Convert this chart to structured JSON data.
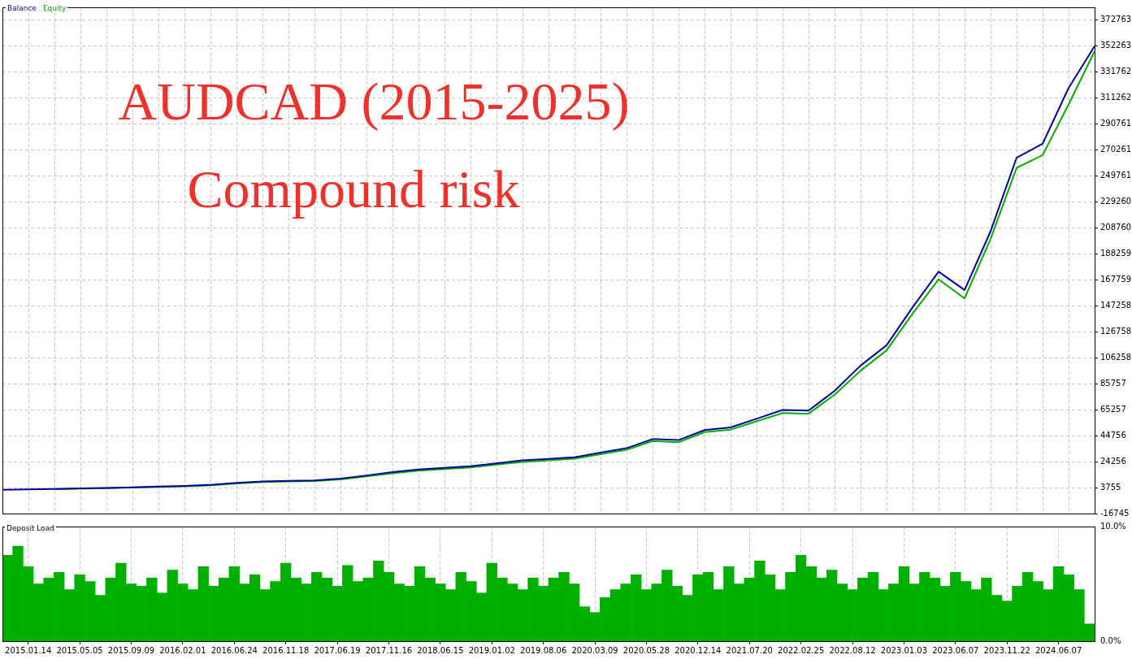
{
  "chart_data": [
    {
      "type": "line",
      "title": "AUDCAD (2015-2025)",
      "subtitle": "Compound risk",
      "legend": "top left",
      "grid": true,
      "marker": "none",
      "line_style": "solid",
      "tick_labels": "y",
      "categories": [
        null,
        null,
        null,
        null,
        null,
        null,
        null,
        null,
        null,
        null,
        null,
        null,
        null,
        null,
        null,
        null,
        null,
        null,
        null,
        null,
        null,
        null,
        null,
        null,
        null,
        null,
        null,
        null,
        null,
        null,
        null,
        null,
        null,
        null,
        null,
        null,
        null,
        null,
        null,
        null,
        null,
        null,
        null
      ],
      "ylim": [
        -16745,
        382600
      ],
      "yticks": [
        -16745,
        3755,
        24256,
        44756,
        65257,
        85757,
        106258,
        126758,
        147258,
        167759,
        188259,
        208760,
        229260,
        249761,
        270261,
        290761,
        311262,
        331762,
        352263,
        372763
      ],
      "series": [
        {
          "name": "Balance",
          "color": "#0000a0",
          "values": [
            2000,
            2300,
            2700,
            3100,
            3500,
            3900,
            4500,
            5100,
            5900,
            7500,
            8600,
            9000,
            9400,
            10800,
            13300,
            15900,
            18000,
            19300,
            20600,
            22900,
            25200,
            26400,
            27700,
            31300,
            34800,
            42000,
            41200,
            49100,
            51200,
            58000,
            65000,
            64500,
            80000,
            100000,
            116000,
            146000,
            174000,
            159600,
            206000,
            264000,
            275000,
            319000,
            352000
          ]
        },
        {
          "name": "Equity",
          "color": "#00b000",
          "values": [
            null,
            null,
            2500,
            null,
            3300,
            3700,
            4200,
            4800,
            5500,
            7000,
            8100,
            8500,
            8900,
            10200,
            12500,
            15000,
            17000,
            18300,
            19600,
            21900,
            24000,
            25300,
            26500,
            30000,
            33500,
            40500,
            39500,
            47500,
            49500,
            56000,
            62500,
            62000,
            77000,
            96000,
            112000,
            141000,
            168000,
            153000,
            200000,
            256000,
            266000,
            306000,
            348000
          ]
        }
      ]
    },
    {
      "type": "bar",
      "title": "Deposit Load",
      "grid": "x",
      "color": "#00b000",
      "categories": [
        null,
        null,
        "2015.01.14",
        null,
        null,
        null,
        null,
        "2015.05.05",
        null,
        null,
        null,
        null,
        "2015.09.09",
        null,
        null,
        null,
        null,
        "2016.02.01",
        null,
        null,
        null,
        null,
        "2016.06.24",
        null,
        null,
        null,
        null,
        "2016.11.18",
        null,
        null,
        null,
        null,
        "2017.06.19",
        null,
        null,
        null,
        null,
        "2017.11.16",
        null,
        null,
        null,
        null,
        "2018.06.15",
        null,
        null,
        null,
        null,
        "2019.01.02",
        null,
        null,
        null,
        null,
        "2019.08.06",
        null,
        null,
        null,
        null,
        "2020.03.09",
        null,
        null,
        null,
        null,
        "2020.05.28",
        null,
        null,
        null,
        null,
        "2020.12.14",
        null,
        null,
        null,
        null,
        "2021.07.20",
        null,
        null,
        null,
        null,
        "2022.02.25",
        null,
        null,
        null,
        null,
        "2022.08.12",
        null,
        null,
        null,
        null,
        "2023.01.03",
        null,
        null,
        null,
        null,
        "2023.06.07",
        null,
        null,
        null,
        null,
        "2023.11.22",
        null,
        null,
        null,
        null,
        "2024.06.07",
        null,
        null,
        null
      ],
      "ylim": [
        0,
        10
      ],
      "yticks": [
        {
          "value": 0,
          "label": "0.0%"
        },
        {
          "value": 10,
          "label": "10.0%"
        }
      ],
      "values": [
        7.5,
        8.3,
        6.5,
        5.0,
        5.5,
        6.0,
        4.5,
        5.8,
        5.2,
        4.0,
        5.5,
        6.8,
        5.0,
        4.8,
        5.5,
        4.2,
        6.2,
        5.0,
        4.5,
        6.5,
        4.8,
        5.5,
        6.5,
        5.0,
        5.8,
        4.5,
        5.2,
        6.8,
        5.5,
        5.0,
        6.0,
        5.5,
        4.8,
        6.6,
        5.2,
        5.5,
        7.0,
        6.0,
        5.0,
        4.8,
        6.5,
        5.5,
        5.0,
        4.5,
        6.0,
        5.2,
        4.2,
        6.8,
        5.5,
        5.0,
        4.5,
        5.5,
        4.8,
        5.5,
        6.0,
        5.0,
        3.0,
        2.5,
        3.8,
        4.5,
        5.0,
        5.8,
        4.5,
        5.0,
        6.2,
        4.8,
        4.0,
        5.8,
        6.0,
        4.5,
        6.5,
        5.0,
        5.5,
        7.0,
        5.8,
        4.5,
        6.0,
        7.5,
        6.5,
        5.5,
        6.2,
        5.0,
        4.5,
        5.5,
        6.0,
        4.5,
        5.0,
        6.5,
        5.0,
        6.0,
        5.5,
        4.8,
        6.0,
        5.2,
        4.5,
        5.5,
        4.0,
        3.5,
        4.8,
        6.0,
        5.2,
        4.5,
        6.5,
        5.8,
        4.5,
        1.5
      ]
    }
  ]
}
